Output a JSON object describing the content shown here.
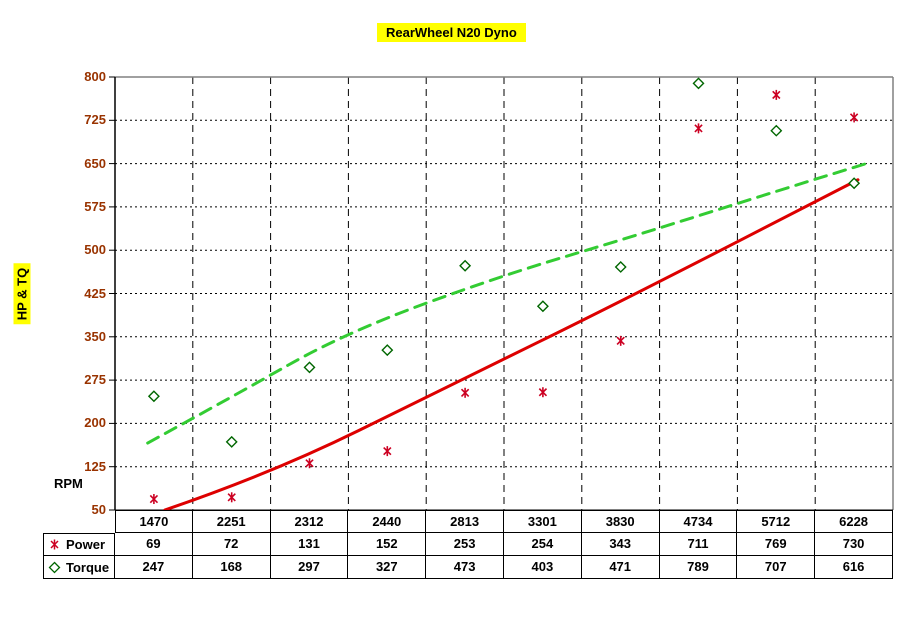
{
  "title": "RearWheel N20 Dyno",
  "y_axis_label": "HP & TQ",
  "x_axis_label": "RPM",
  "colors": {
    "highlight_yellow": "#FFFF00",
    "axis_tick_text": "#993300",
    "power_marker": "#CC0022",
    "power_trend": "#DD0000",
    "torque_marker": "#006600",
    "torque_trend": "#33CC33",
    "gridline": "#000000",
    "plot_border_gray": "#808080",
    "background": "#FFFFFF"
  },
  "chart_data": {
    "type": "scatter",
    "title": "RearWheel N20 Dyno",
    "xlabel": "RPM",
    "ylabel": "HP & TQ",
    "ylim": [
      50,
      800
    ],
    "y_ticks": [
      50,
      125,
      200,
      275,
      350,
      425,
      500,
      575,
      650,
      725,
      800
    ],
    "grid": true,
    "legend_position": "table-left",
    "categories": [
      1470,
      2251,
      2312,
      2440,
      2813,
      3301,
      3830,
      4734,
      5712,
      6228
    ],
    "series": [
      {
        "name": "Power",
        "marker": "asterisk",
        "values": [
          69,
          72,
          131,
          152,
          253,
          254,
          343,
          711,
          769,
          730
        ],
        "trend_style": "solid",
        "trend_path": [
          [
            0.064,
            50
          ],
          [
            0.199,
            112
          ],
          [
            0.427,
            263
          ],
          [
            0.659,
            417
          ],
          [
            0.955,
            622
          ]
        ]
      },
      {
        "name": "Torque",
        "marker": "diamond",
        "values": [
          247,
          168,
          297,
          327,
          473,
          403,
          471,
          789,
          707,
          616
        ],
        "trend_style": "dashed",
        "trend_path": [
          [
            0.042,
            166
          ],
          [
            0.148,
            244
          ],
          [
            0.296,
            357
          ],
          [
            0.499,
            457
          ],
          [
            0.659,
            521
          ],
          [
            0.864,
            608
          ],
          [
            0.968,
            651
          ]
        ]
      }
    ]
  }
}
